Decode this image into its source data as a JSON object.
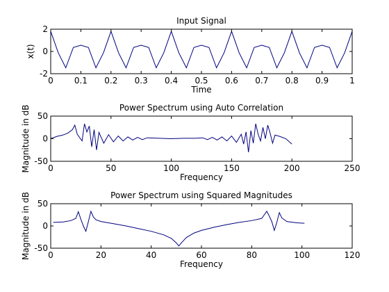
{
  "chart_data": [
    {
      "type": "line",
      "title": "Input Signal",
      "xlabel": "Time",
      "ylabel": "x(t)",
      "xlim": [
        0,
        1
      ],
      "ylim": [
        -2,
        2
      ],
      "xticks": [
        0,
        0.1,
        0.2,
        0.3,
        0.4,
        0.5,
        0.6,
        0.7,
        0.8,
        0.9,
        1
      ],
      "xtick_labels": [
        "0",
        "0.1",
        "0.2",
        "0.3",
        "0.4",
        "0.5",
        "0.6",
        "0.7",
        "0.8",
        "0.9",
        "1"
      ],
      "yticks": [
        -2,
        0,
        2
      ],
      "ytick_labels": [
        "-2",
        "0",
        "2"
      ],
      "grid": false,
      "line_color": "#00007f",
      "series": [
        {
          "x": [
            0,
            0.025,
            0.05,
            0.075,
            0.1,
            0.125,
            0.15,
            0.175,
            0.2,
            0.225,
            0.25,
            0.275,
            0.3,
            0.325,
            0.35,
            0.375,
            0.4,
            0.425,
            0.45,
            0.475,
            0.5,
            0.525,
            0.55,
            0.575,
            0.6,
            0.625,
            0.65,
            0.675,
            0.7,
            0.725,
            0.75,
            0.775,
            0.8,
            0.825,
            0.85,
            0.875,
            0.9,
            0.925,
            0.95,
            0.975,
            1
          ],
          "y": [
            1.81,
            -0.12,
            -1.47,
            0.36,
            0.56,
            0.36,
            -1.47,
            -0.12,
            1.81,
            -0.12,
            -1.47,
            0.36,
            0.56,
            0.36,
            -1.47,
            -0.12,
            1.81,
            -0.12,
            -1.47,
            0.36,
            0.56,
            0.36,
            -1.47,
            -0.12,
            1.81,
            -0.12,
            -1.47,
            0.36,
            0.56,
            0.36,
            -1.47,
            -0.12,
            1.81,
            -0.12,
            -1.47,
            0.36,
            0.56,
            0.36,
            -1.47,
            -0.12,
            1.81
          ]
        }
      ]
    },
    {
      "type": "line",
      "title": "Power Spectrum using Auto Correlation",
      "xlabel": "Frequency",
      "ylabel": "Magnitude in dB",
      "xlim": [
        0,
        250
      ],
      "ylim": [
        -50,
        50
      ],
      "xticks": [
        0,
        50,
        100,
        150,
        200,
        250
      ],
      "xtick_labels": [
        "0",
        "50",
        "100",
        "150",
        "200",
        "250"
      ],
      "yticks": [
        -50,
        0,
        50
      ],
      "ytick_labels": [
        "-50",
        "0",
        "50"
      ],
      "grid": false,
      "line_color": "#00007f",
      "series": [
        {
          "x": [
            0,
            5,
            10,
            14,
            18,
            20,
            22,
            26,
            28,
            30,
            32,
            34,
            36,
            38,
            40,
            44,
            48,
            52,
            56,
            60,
            64,
            68,
            72,
            76,
            80,
            90,
            100,
            110,
            120,
            126,
            130,
            134,
            138,
            142,
            146,
            150,
            154,
            158,
            160,
            162,
            164,
            166,
            168,
            170,
            172,
            174,
            176,
            178,
            180,
            182,
            184,
            186,
            190,
            195,
            200
          ],
          "y": [
            0,
            5,
            8,
            12,
            20,
            30,
            10,
            -5,
            33,
            15,
            28,
            -18,
            20,
            -25,
            14,
            -10,
            9,
            -7,
            6,
            -5,
            4,
            -3,
            3,
            -2,
            2,
            1,
            0,
            1,
            1,
            2,
            -2,
            3,
            -3,
            4,
            -5,
            6,
            -8,
            10,
            -12,
            15,
            -30,
            18,
            -10,
            33,
            10,
            -5,
            25,
            0,
            30,
            12,
            -10,
            8,
            5,
            0,
            -12
          ]
        }
      ]
    },
    {
      "type": "line",
      "title": "Power Spectrum using Squared Magnitudes",
      "xlabel": "Frequency",
      "ylabel": "Magnitude in dB",
      "xlim": [
        0,
        120
      ],
      "ylim": [
        -50,
        50
      ],
      "xticks": [
        0,
        20,
        40,
        60,
        80,
        100,
        120
      ],
      "xtick_labels": [
        "0",
        "20",
        "40",
        "60",
        "80",
        "100",
        "120"
      ],
      "yticks": [
        -50,
        0,
        50
      ],
      "ytick_labels": [
        "-50",
        "0",
        "50"
      ],
      "grid": false,
      "line_color": "#00007f",
      "series": [
        {
          "x": [
            1,
            5,
            8,
            10,
            11,
            12,
            13,
            14,
            15,
            16,
            17,
            18,
            20,
            25,
            30,
            35,
            40,
            45,
            48,
            50,
            51,
            52,
            54,
            57,
            60,
            65,
            70,
            75,
            80,
            84,
            85,
            86,
            87,
            88,
            89,
            90,
            91,
            92,
            94,
            98,
            101
          ],
          "y": [
            8,
            9,
            12,
            17,
            32,
            15,
            0,
            -12,
            10,
            33,
            20,
            14,
            10,
            5,
            0,
            -6,
            -12,
            -20,
            -28,
            -38,
            -45,
            -38,
            -26,
            -16,
            -10,
            -3,
            3,
            8,
            12,
            17,
            25,
            33,
            22,
            10,
            -10,
            8,
            30,
            18,
            10,
            7,
            6
          ]
        }
      ]
    }
  ]
}
